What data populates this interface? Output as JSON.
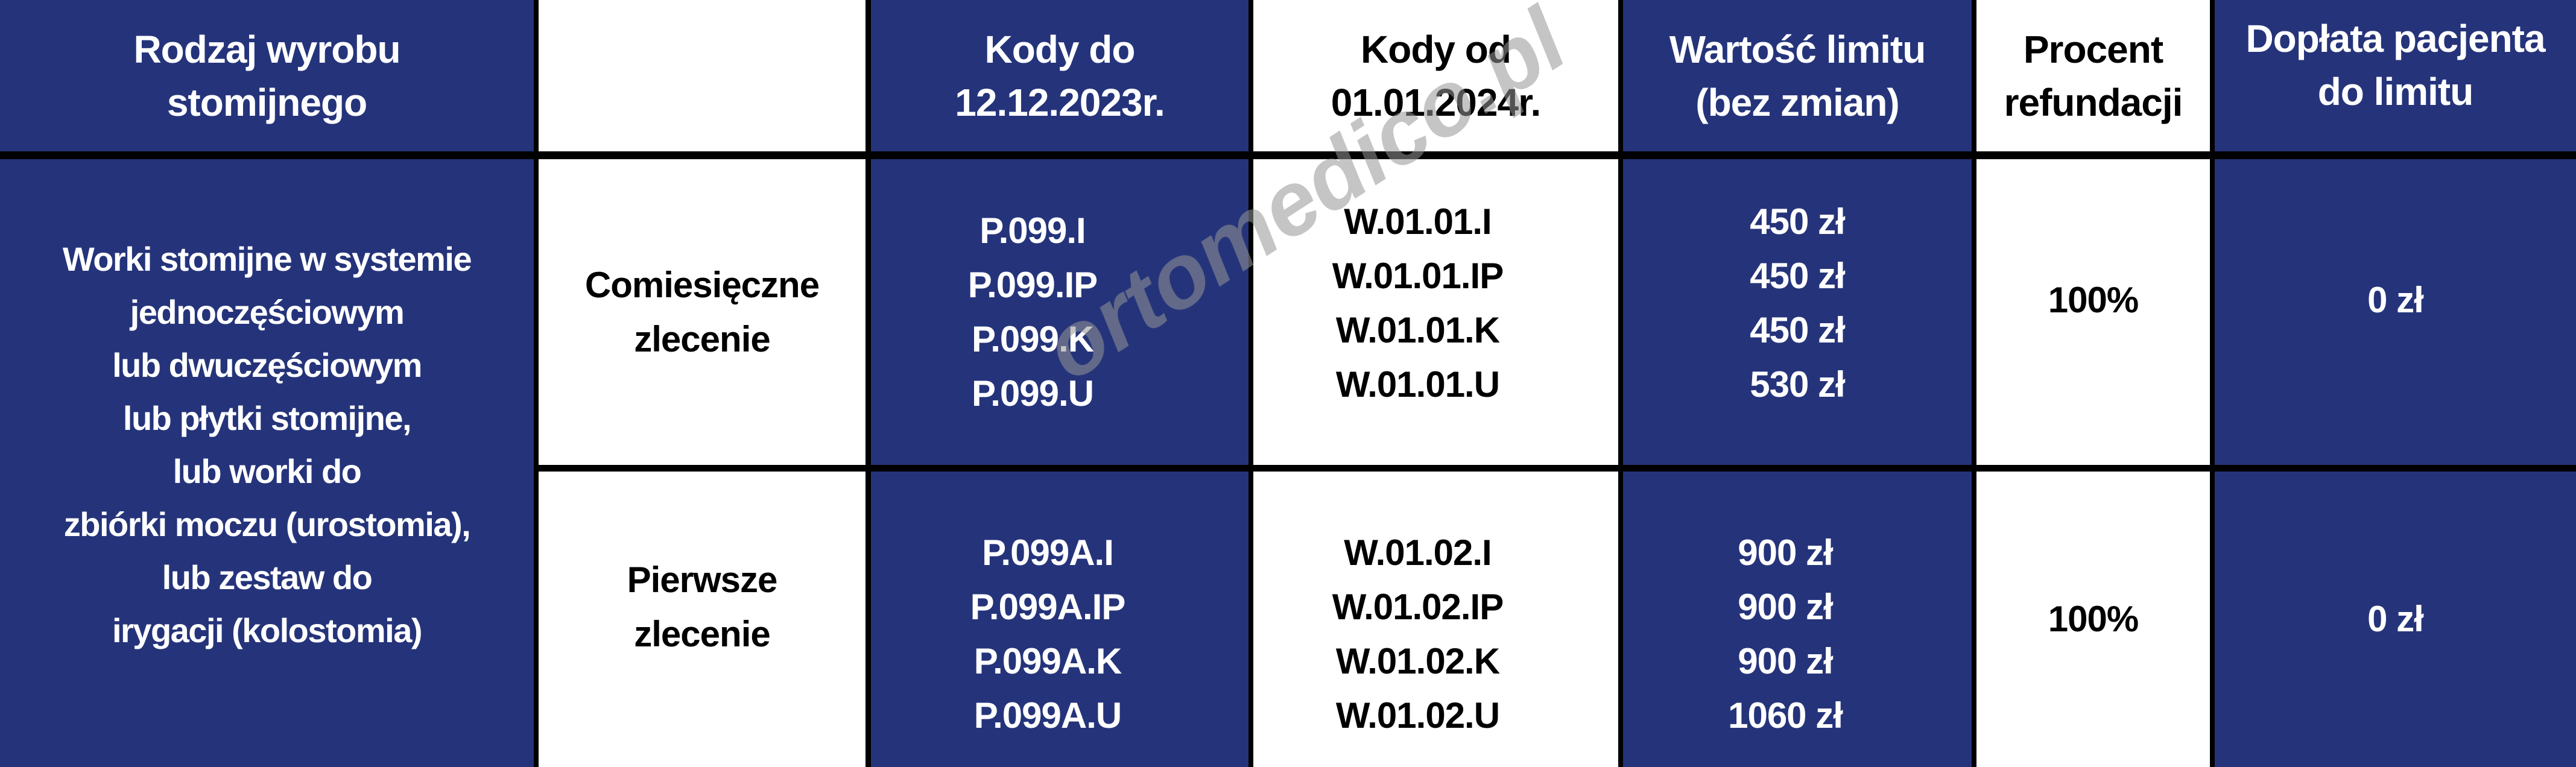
{
  "colors": {
    "navy": "#25347a",
    "white": "#ffffff",
    "border": "#000000"
  },
  "header": {
    "product_type": [
      "Rodzaj wyrobu",
      "stomijnego"
    ],
    "order_type": "",
    "codes_old": [
      "Kody do",
      "12.12.2023r."
    ],
    "codes_new": [
      "Kody od",
      "01.01.2024r."
    ],
    "limit": [
      "Wartość limitu",
      "(bez zmian)"
    ],
    "refund": [
      "Procent",
      "refundacji"
    ],
    "copay": [
      "Dopłata pacjenta",
      "do limitu"
    ]
  },
  "product": [
    "Worki stomijne w systemie",
    "jednoczęściowym",
    "lub dwuczęściowym",
    "lub płytki stomijne,",
    "lub worki do",
    "zbiórki moczu (urostomia),",
    "lub zestaw do",
    "irygacji (kolostomia)"
  ],
  "rows": [
    {
      "order": [
        "Comiesięczne",
        "zlecenie"
      ],
      "codes_old": [
        "P.099.I",
        "P.099.IP",
        "P.099.K",
        "P.099.U"
      ],
      "codes_new": [
        "W.01.01.I",
        "W.01.01.IP",
        "W.01.01.K",
        "W.01.01.U"
      ],
      "limits": [
        "450 zł",
        "450 zł",
        "450 zł",
        "530 zł"
      ],
      "refund": "100%",
      "copay": "0 zł"
    },
    {
      "order": [
        "Pierwsze",
        "zlecenie"
      ],
      "codes_old": [
        "P.099A.I",
        "P.099A.IP",
        "P.099A.K",
        "P.099A.U"
      ],
      "codes_new": [
        "W.01.02.I",
        "W.01.02.IP",
        "W.01.02.K",
        "W.01.02.U"
      ],
      "limits": [
        "900 zł",
        "900 zł",
        "900 zł",
        "1060 zł"
      ],
      "refund": "100%",
      "copay": "0 zł"
    }
  ],
  "watermark": "ortomedico.pl"
}
